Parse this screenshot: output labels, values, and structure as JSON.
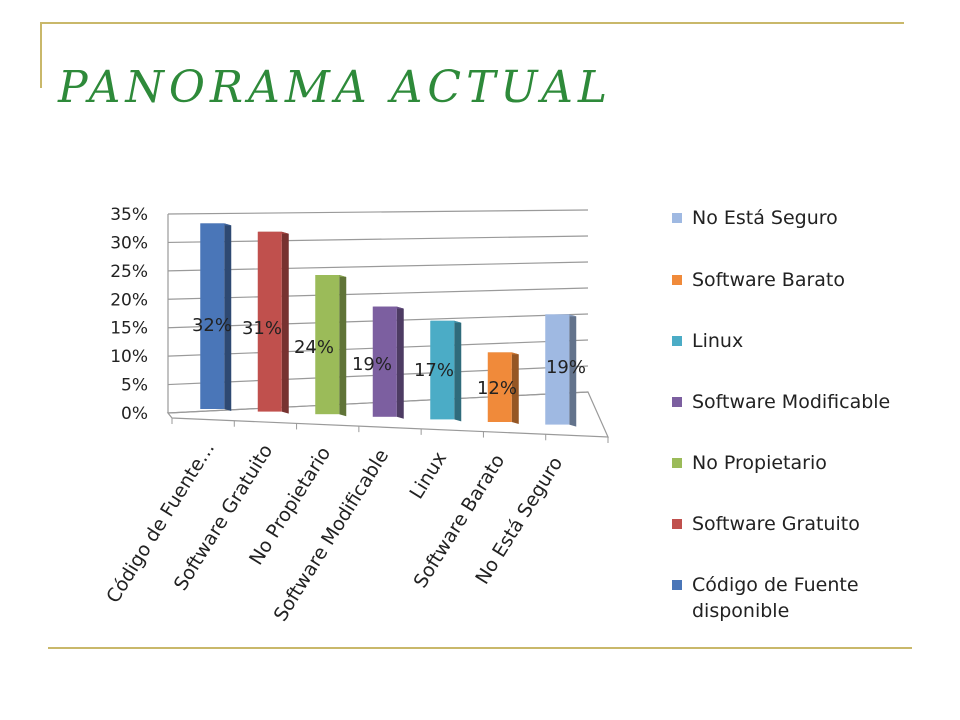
{
  "title": "PANORAMA ACTUAL",
  "chart_data": {
    "type": "bar",
    "style": "3d",
    "categories": [
      "Código de Fuente…",
      "Software Gratuito",
      "No Propietario",
      "Software Modificable",
      "Linux",
      "Software Barato",
      "No Está Seguro"
    ],
    "values": [
      32,
      31,
      24,
      19,
      17,
      12,
      19
    ],
    "data_labels": [
      "32%",
      "31%",
      "24%",
      "19%",
      "17%",
      "12%",
      "19%"
    ],
    "colors": [
      "#4a76b8",
      "#c0504d",
      "#9bbb59",
      "#7c5fa0",
      "#4bacc6",
      "#f08a3a",
      "#9fb9e2"
    ],
    "ylim": [
      0,
      35
    ],
    "yticks": [
      "0%",
      "5%",
      "10%",
      "15%",
      "20%",
      "25%",
      "30%",
      "35%"
    ],
    "grid": true,
    "legend_position": "right",
    "legend": [
      {
        "label": "No Está Seguro",
        "color": "#9fb9e2"
      },
      {
        "label": "Software Barato",
        "color": "#f08a3a"
      },
      {
        "label": "Linux",
        "color": "#4bacc6"
      },
      {
        "label": "Software Modificable",
        "color": "#7c5fa0"
      },
      {
        "label": "No Propietario",
        "color": "#9bbb59"
      },
      {
        "label": "Software Gratuito",
        "color": "#c0504d"
      },
      {
        "label": "Código de Fuente disponible",
        "color": "#4a76b8"
      }
    ]
  }
}
